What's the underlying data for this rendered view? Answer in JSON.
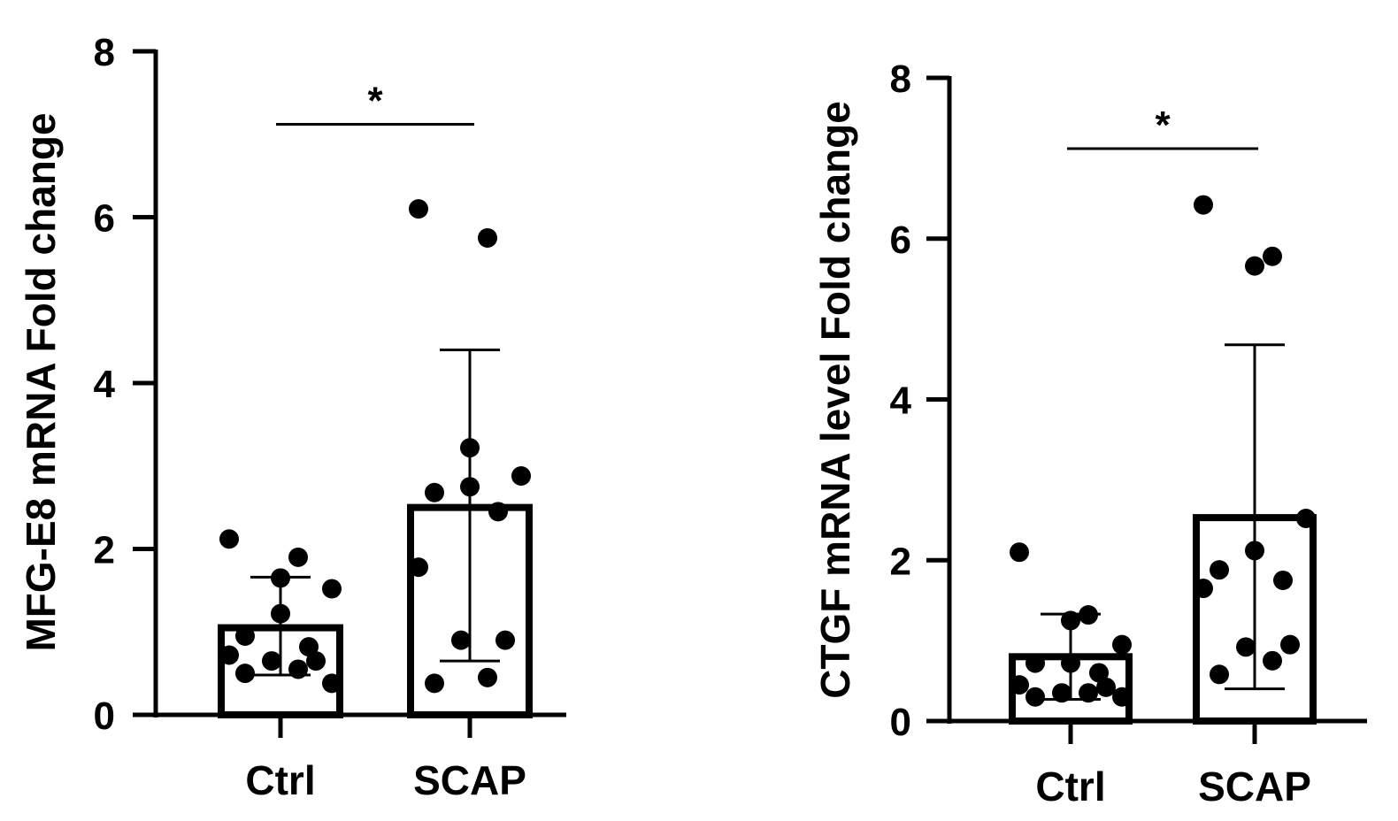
{
  "chart_data": [
    {
      "type": "bar",
      "ylabel": "MFG-E8 mRNA Fold change",
      "xlabel": "",
      "ylim": [
        0,
        8
      ],
      "yticks": [
        0,
        2,
        4,
        6,
        8
      ],
      "categories": [
        "Ctrl",
        "SCAP"
      ],
      "values": [
        1.05,
        2.5
      ],
      "error_low": [
        0.48,
        0.65
      ],
      "error_high": [
        1.66,
        4.4
      ],
      "points": [
        [
          2.12,
          1.9,
          1.65,
          1.52,
          1.22,
          0.95,
          0.82,
          0.72,
          0.65,
          0.65,
          0.55,
          0.5,
          0.38
        ],
        [
          6.1,
          5.75,
          3.22,
          2.88,
          2.75,
          2.68,
          2.45,
          1.78,
          0.9,
          0.9,
          0.45,
          0.38
        ]
      ],
      "significance": {
        "label": "*",
        "between": [
          "Ctrl",
          "SCAP"
        ],
        "y": 7.12
      },
      "grid": false,
      "colors": {
        "bar_fill": "#ffffff",
        "bar_edge": "#000000",
        "points": "#000000"
      }
    },
    {
      "type": "bar",
      "ylabel": "CTGF mRNA level Fold change",
      "xlabel": "",
      "ylim": [
        0,
        8
      ],
      "yticks": [
        0,
        2,
        4,
        6,
        8
      ],
      "categories": [
        "Ctrl",
        "SCAP"
      ],
      "values": [
        0.8,
        2.53
      ],
      "error_low": [
        0.27,
        0.4
      ],
      "error_high": [
        1.33,
        4.68
      ],
      "points": [
        [
          2.1,
          1.32,
          1.25,
          0.95,
          0.72,
          0.72,
          0.6,
          0.45,
          0.42,
          0.35,
          0.35,
          0.3,
          0.3
        ],
        [
          6.42,
          5.78,
          5.66,
          2.52,
          2.12,
          1.88,
          1.75,
          1.65,
          0.95,
          0.92,
          0.75,
          0.58
        ]
      ],
      "significance": {
        "label": "*",
        "between": [
          "Ctrl",
          "SCAP"
        ],
        "y": 7.12
      },
      "grid": false,
      "colors": {
        "bar_fill": "#ffffff",
        "bar_edge": "#000000",
        "points": "#000000"
      }
    }
  ]
}
